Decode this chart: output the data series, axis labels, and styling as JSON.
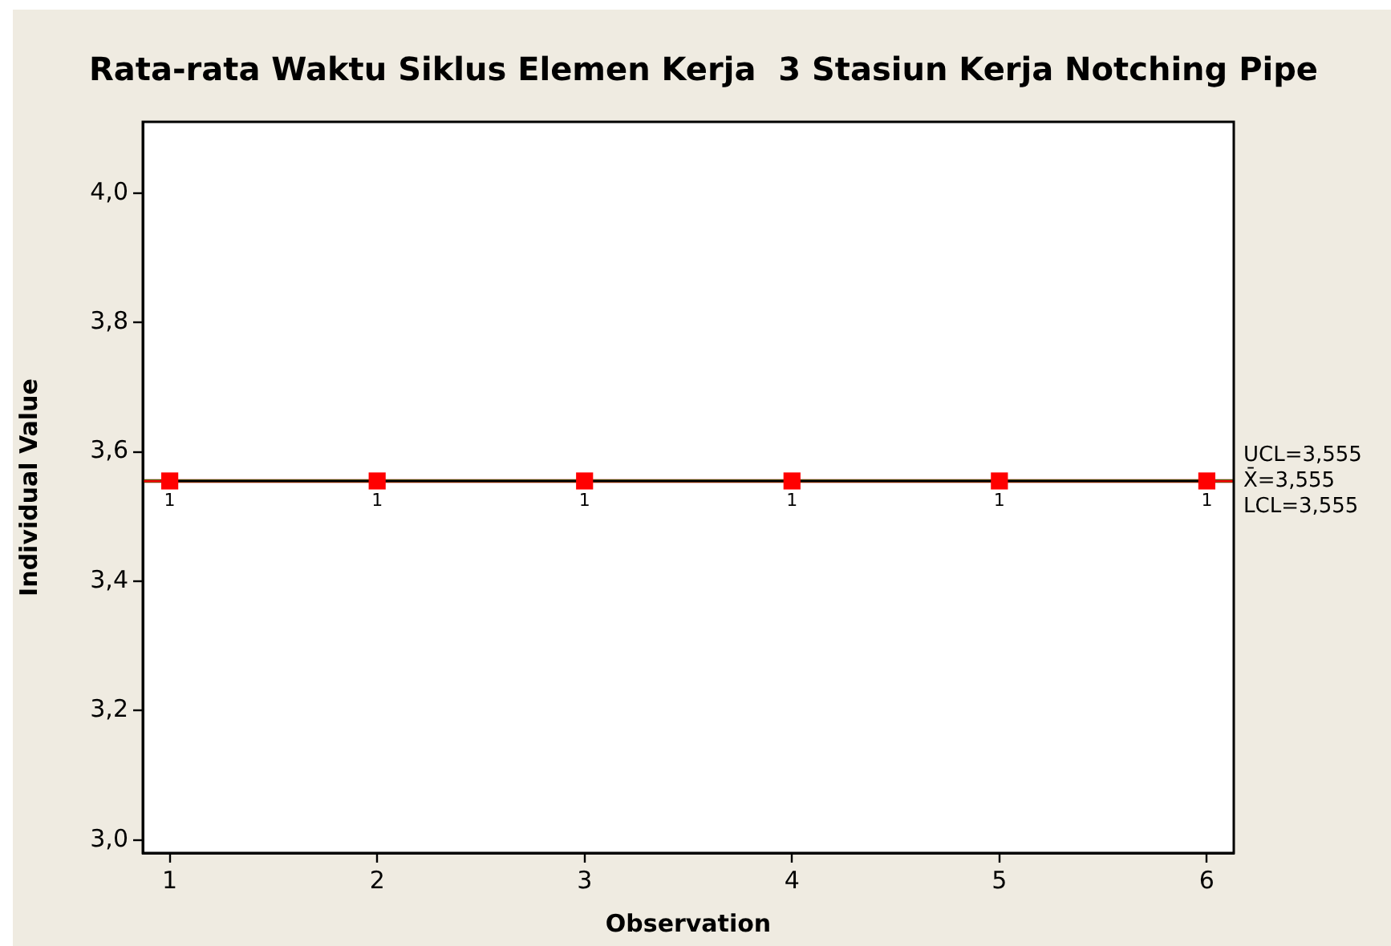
{
  "chart_data": {
    "type": "line",
    "title": "Rata-rata Waktu Siklus Elemen Kerja  3 Stasiun Kerja Notching Pipe",
    "xlabel": "Observation",
    "ylabel": "Individual Value",
    "x": [
      1,
      2,
      3,
      4,
      5,
      6
    ],
    "series": [
      {
        "color": "#000000",
        "colors": [
          "#ff0000",
          "#ff0000",
          "#ff0000",
          "#ff0000",
          "#ff0000",
          "#ff0000"
        ],
        "values": [
          3.555,
          3.555,
          3.555,
          3.555,
          3.555,
          3.555
        ]
      }
    ],
    "xlim": [
      0.87,
      6.13
    ],
    "xticks": [
      1,
      2,
      3,
      4,
      5,
      6
    ],
    "ylim": [
      2.98,
      4.11
    ],
    "yticks": [
      {
        "value": 3,
        "label": "3,0"
      },
      {
        "value": 3.2,
        "label": "3,2"
      },
      {
        "value": 3.4,
        "label": "3,4"
      },
      {
        "value": 3.6,
        "label": "3,6"
      },
      {
        "value": 3.8,
        "label": "3,8"
      },
      {
        "value": 4,
        "label": "4,0"
      }
    ],
    "ref_lines": [
      {
        "axis": "y",
        "value": 3.555,
        "label": "UCL=3,555",
        "color": "#ff0000"
      },
      {
        "axis": "y",
        "value": 3.555,
        "label": "X̄=3,555",
        "color": "#008000"
      },
      {
        "axis": "y",
        "value": 3.555,
        "label": "LCL=3,555",
        "color": "#ff0000"
      }
    ],
    "annotations": [
      {
        "text": "1",
        "x": 1,
        "y": 3.555
      },
      {
        "text": "1",
        "x": 2,
        "y": 3.555
      },
      {
        "text": "1",
        "x": 3,
        "y": 3.555
      },
      {
        "text": "1",
        "x": 4,
        "y": 3.555
      },
      {
        "text": "1",
        "x": 5,
        "y": 3.555
      },
      {
        "text": "1",
        "x": 6,
        "y": 3.555
      }
    ],
    "marker": "square",
    "line_style": "solid"
  }
}
